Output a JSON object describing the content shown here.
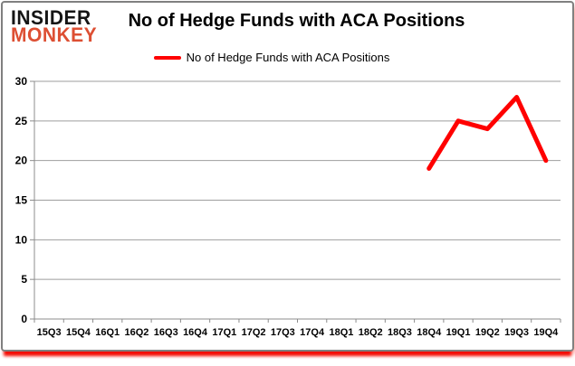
{
  "brand": {
    "line1": "INSIDER",
    "line2": "MONKEY"
  },
  "header": {
    "title": "No of Hedge Funds with ACA Positions"
  },
  "legend": {
    "label": "No of Hedge Funds with ACA Positions"
  },
  "colors": {
    "series": "#ff0000",
    "grid": "#9e9e9e",
    "axis": "#8c8c8c",
    "brand_black": "#151515",
    "brand_red": "#dd4f33",
    "frame_border": "#808080",
    "frame_shadow_red": "#f30d05"
  },
  "chart_data": {
    "type": "line",
    "title": "No of Hedge Funds with ACA Positions",
    "categories": [
      "15Q3",
      "15Q4",
      "16Q1",
      "16Q2",
      "16Q3",
      "16Q4",
      "17Q1",
      "17Q2",
      "17Q3",
      "17Q4",
      "18Q1",
      "18Q2",
      "18Q3",
      "18Q4",
      "19Q1",
      "19Q2",
      "19Q3",
      "19Q4"
    ],
    "series": [
      {
        "name": "No of Hedge Funds with ACA Positions",
        "color": "#ff0000",
        "values": [
          null,
          null,
          null,
          null,
          null,
          null,
          null,
          null,
          null,
          null,
          null,
          null,
          null,
          19,
          25,
          24,
          28,
          20
        ]
      }
    ],
    "xlabel": "",
    "ylabel": "",
    "ylim": [
      0,
      30
    ],
    "ytick_step": 5,
    "grid": true,
    "legend_position": "top-center"
  }
}
